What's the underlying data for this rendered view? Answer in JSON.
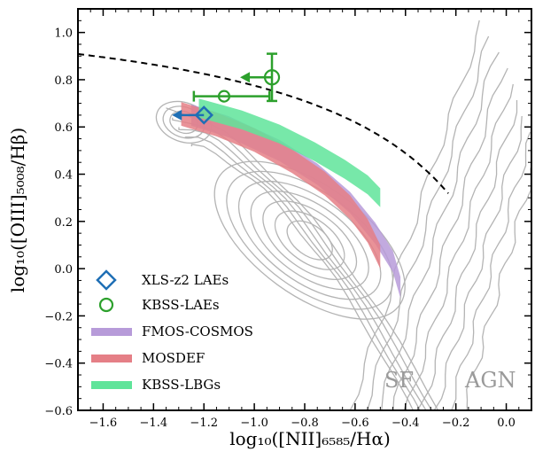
{
  "chart_data": {
    "type": "scatter",
    "xlabel": "log₁₀([NII]₆₅₈₅/Hα)",
    "ylabel": "log₁₀([OIII]₅₀₀₈/Hβ)",
    "xlim": [
      -1.7,
      0.1
    ],
    "ylim": [
      -0.6,
      1.1
    ],
    "x_ticks": [
      -1.6,
      -1.4,
      -1.2,
      -1.0,
      -0.8,
      -0.6,
      -0.4,
      -0.2,
      0.0
    ],
    "x_tick_labels": [
      "−1.6",
      "−1.4",
      "−1.2",
      "−1.0",
      "−0.8",
      "−0.6",
      "−0.4",
      "−0.2",
      "0.0"
    ],
    "y_ticks": [
      -0.6,
      -0.4,
      -0.2,
      0.0,
      0.2,
      0.4,
      0.6,
      0.8,
      1.0
    ],
    "y_tick_labels": [
      "−0.6",
      "−0.4",
      "−0.2",
      "0.0",
      "0.2",
      "0.4",
      "0.6",
      "0.8",
      "1.0"
    ],
    "grid": false,
    "legend_position": "lower-left",
    "demarcation_curve": {
      "style": "dashed",
      "color": "#000000",
      "function": "0.61/(x-0.47)+1.19",
      "x_max": -0.23
    },
    "region_labels": [
      "SF",
      "AGN"
    ],
    "contours": {
      "color": "#b4b4b4",
      "description": "SDSS galaxy density contours"
    },
    "series": [
      {
        "name": "XLS-z2 LAEs",
        "kind": "point",
        "marker": "diamond",
        "color": "#1f6fb5",
        "points": [
          {
            "x": -1.2,
            "y": 0.65,
            "upper_limit_x": true
          }
        ]
      },
      {
        "name": "KBSS-LAEs",
        "kind": "point",
        "marker": "circle",
        "color": "#2ca02c",
        "points": [
          {
            "x": -1.12,
            "y": 0.73,
            "xerr": [
              0.12,
              0.18
            ],
            "yerr": [
              0,
              0
            ],
            "upper_limit_x": false
          },
          {
            "x": -0.93,
            "y": 0.81,
            "xerr": [
              0,
              0
            ],
            "yerr": [
              0.1,
              0.1
            ],
            "upper_limit_x": true
          }
        ]
      },
      {
        "name": "FMOS-COSMOS",
        "kind": "band",
        "color": "#b79bd9",
        "center": [
          [
            -1.25,
            0.65
          ],
          [
            -1.1,
            0.6
          ],
          [
            -0.9,
            0.5
          ],
          [
            -0.75,
            0.4
          ],
          [
            -0.62,
            0.28
          ],
          [
            -0.52,
            0.15
          ],
          [
            -0.45,
            0.03
          ],
          [
            -0.42,
            -0.08
          ]
        ],
        "halfwidth": 0.045
      },
      {
        "name": "MOSDEF",
        "kind": "band",
        "color": "#e57f86",
        "center": [
          [
            -1.29,
            0.655
          ],
          [
            -1.15,
            0.61
          ],
          [
            -1.0,
            0.545
          ],
          [
            -0.85,
            0.455
          ],
          [
            -0.72,
            0.36
          ],
          [
            -0.62,
            0.26
          ],
          [
            -0.55,
            0.16
          ],
          [
            -0.5,
            0.05
          ]
        ],
        "halfwidth": 0.05
      },
      {
        "name": "KBSS-LBGs",
        "kind": "band",
        "color": "#5fe49a",
        "center": [
          [
            -1.22,
            0.68
          ],
          [
            -1.05,
            0.63
          ],
          [
            -0.9,
            0.57
          ],
          [
            -0.76,
            0.495
          ],
          [
            -0.64,
            0.42
          ],
          [
            -0.55,
            0.355
          ],
          [
            -0.5,
            0.3
          ]
        ],
        "halfwidth": 0.04
      }
    ]
  }
}
